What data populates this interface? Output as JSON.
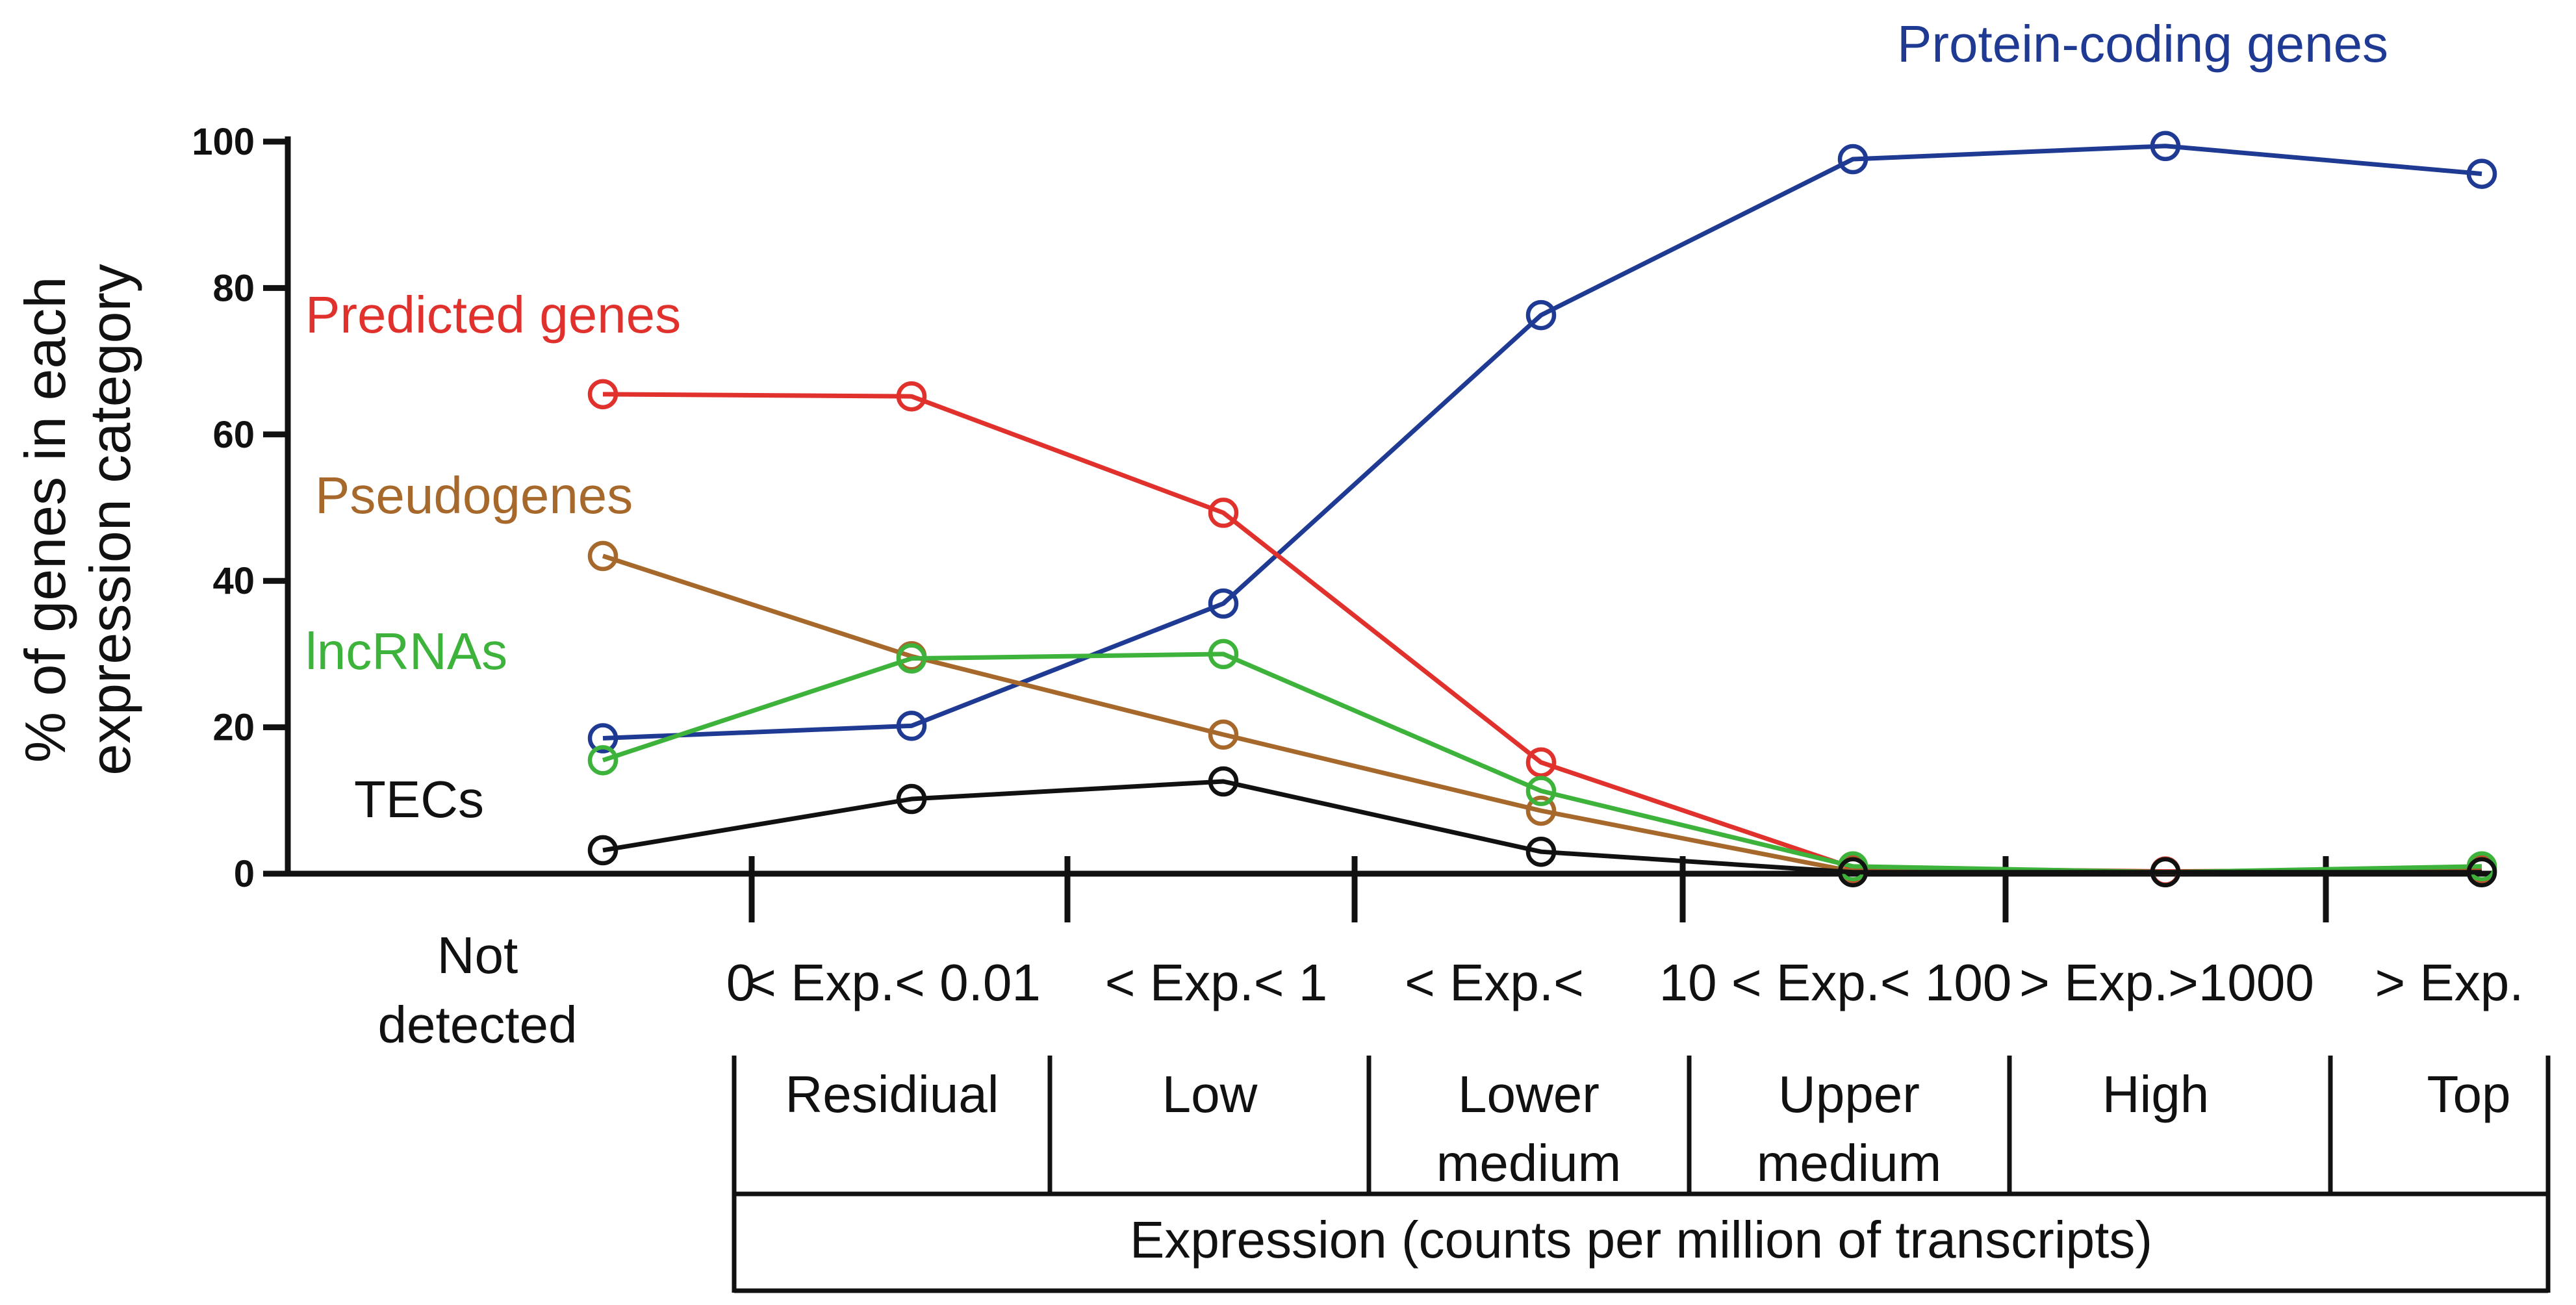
{
  "chart_data": {
    "type": "line",
    "ylabel": [
      "% of genes in each",
      "expression category"
    ],
    "ylim": [
      0,
      100
    ],
    "yticks": [
      "0",
      "20",
      "40",
      "60",
      "80",
      "100"
    ],
    "categories": [
      "Not detected",
      "Residiual",
      "Low",
      "Lower medium",
      "Upper medium",
      "High",
      "Top"
    ],
    "not_detected_label": [
      "Not",
      "detected"
    ],
    "threshold_labels": [
      "0",
      "< Exp.< 0.01",
      "< Exp.< 1",
      "< Exp.<",
      "10 < Exp.< 100",
      "> Exp.>1000",
      "> Exp."
    ],
    "bin_labels": [
      [
        "Residiual"
      ],
      [
        "Low"
      ],
      [
        "Lower",
        "medium"
      ],
      [
        "Upper",
        "medium"
      ],
      [
        "High"
      ],
      [
        "Top"
      ]
    ],
    "xlabel": "Expression (counts per million of transcripts)",
    "series": [
      {
        "name": "Protein-coding genes",
        "color": "#1f3a93",
        "values": [
          18.5,
          20.2,
          36.9,
          76.3,
          97.6,
          99.4,
          95.6
        ]
      },
      {
        "name": "Predicted genes",
        "color": "#e0312d",
        "values": [
          65.5,
          65.2,
          49.3,
          15.2,
          0.8,
          0.3,
          0.6
        ]
      },
      {
        "name": "Pseudogenes",
        "color": "#a6692b",
        "values": [
          43.4,
          29.7,
          19.0,
          8.6,
          0.3,
          0.2,
          0.3
        ]
      },
      {
        "name": "lncRNAs",
        "color": "#3db33b",
        "values": [
          15.5,
          29.4,
          30.0,
          11.3,
          1.0,
          0.2,
          1.0
        ]
      },
      {
        "name": "TECs",
        "color": "#111111",
        "values": [
          3.2,
          10.2,
          12.6,
          3.0,
          0.2,
          0.2,
          0.2
        ]
      }
    ],
    "series_labels": [
      "Protein-coding genes",
      "Predicted genes",
      "Pseudogenes",
      "lncRNAs",
      "TECs"
    ]
  }
}
